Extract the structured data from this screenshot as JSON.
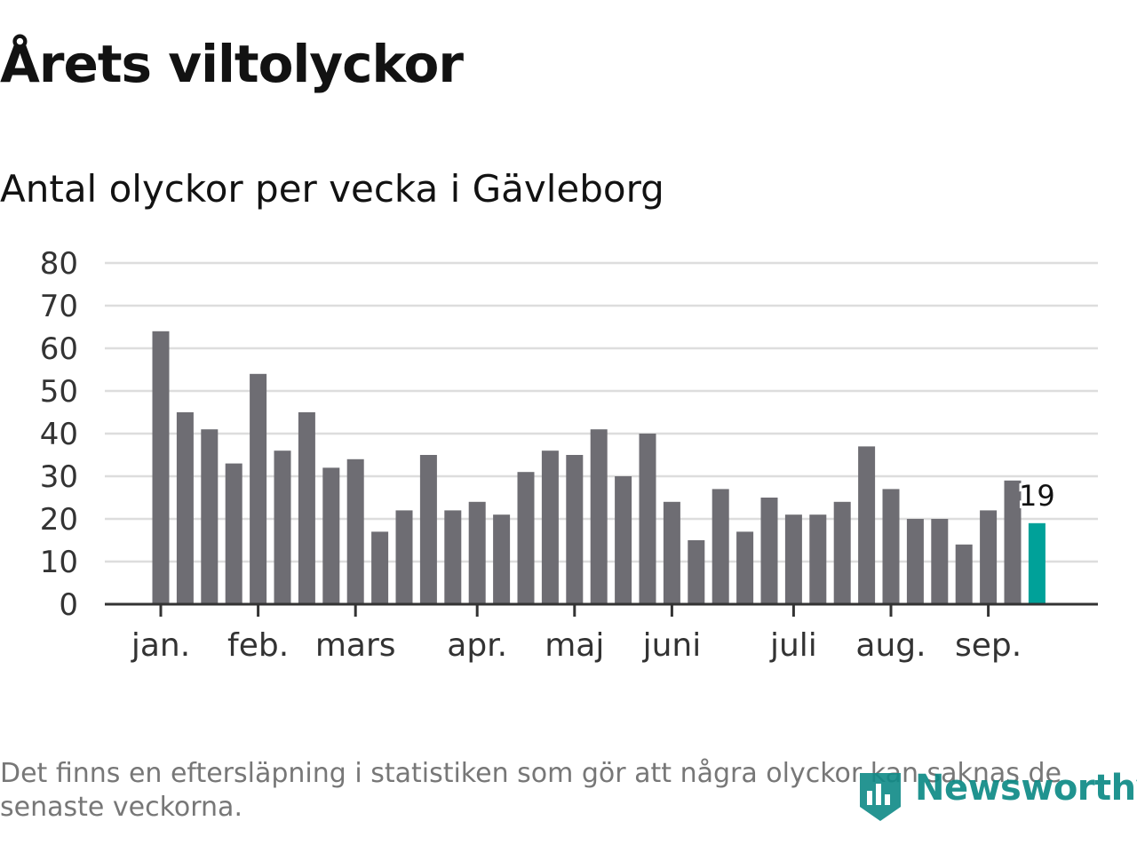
{
  "header": {
    "title": "Årets viltolyckor",
    "subtitle": "Antal olyckor per vecka i Gävleborg"
  },
  "footer": {
    "note": "Det finns en eftersläpning i statistiken som gör att några olyckor kan saknas de senaste veckorna.",
    "brand": "Newsworthy"
  },
  "colors": {
    "bar": "#6e6d73",
    "highlight": "#00a199",
    "grid": "#dddddd",
    "axis": "#333333",
    "text": "#333333",
    "brand": "#0e8a86"
  },
  "chart_data": {
    "type": "bar",
    "ylim": [
      0,
      80
    ],
    "yticks": [
      0,
      10,
      20,
      30,
      40,
      50,
      60,
      70,
      80
    ],
    "grid": true,
    "week_values": [
      64,
      45,
      41,
      33,
      54,
      36,
      45,
      32,
      34,
      17,
      22,
      35,
      22,
      24,
      21,
      31,
      36,
      35,
      41,
      30,
      40,
      24,
      15,
      27,
      17,
      25,
      21,
      21,
      24,
      37,
      27,
      20,
      20,
      14,
      22,
      29,
      19
    ],
    "highlight_last": true,
    "last_value_label": "19",
    "month_ticks": [
      {
        "label": "jan.",
        "week": 1
      },
      {
        "label": "feb.",
        "week": 5
      },
      {
        "label": "mars",
        "week": 9
      },
      {
        "label": "apr.",
        "week": 14
      },
      {
        "label": "maj",
        "week": 18
      },
      {
        "label": "juni",
        "week": 22
      },
      {
        "label": "juli",
        "week": 27
      },
      {
        "label": "aug.",
        "week": 31
      },
      {
        "label": "sep.",
        "week": 35
      }
    ]
  }
}
